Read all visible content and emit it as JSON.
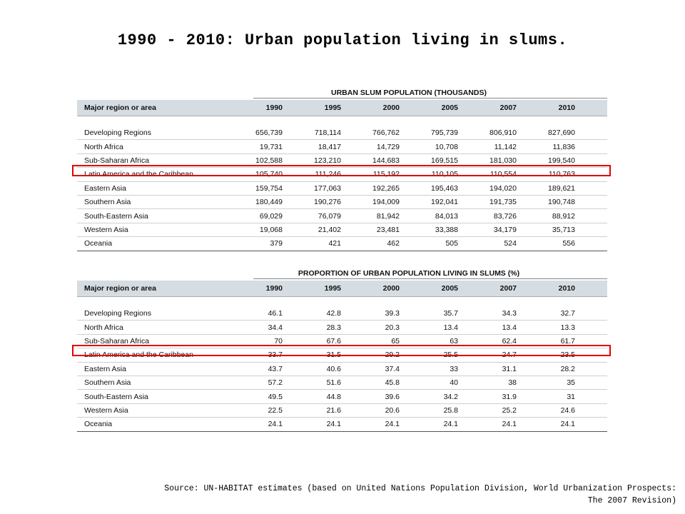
{
  "title": "1990 - 2010: Urban population living in slums.",
  "source_line1": "Source: UN-HABITAT estimates (based on United Nations Population Division, World Urbanization Prospects:",
  "source_line2": "The 2007 Revision)",
  "highlight_color": "#e00000",
  "header_fill": "#d6dde2",
  "tables": [
    {
      "caption": "URBAN SLUM POPULATION (THOUSANDS)",
      "header": [
        "Major region or area",
        "1990",
        "1995",
        "2000",
        "2005",
        "2007",
        "2010"
      ],
      "rows": [
        [
          "Developing Regions",
          "656,739",
          "718,114",
          "766,762",
          "795,739",
          "806,910",
          "827,690"
        ],
        [
          "North Africa",
          "19,731",
          "18,417",
          "14,729",
          "10,708",
          "11,142",
          "11,836"
        ],
        [
          "Sub-Saharan Africa",
          "102,588",
          "123,210",
          "144,683",
          "169,515",
          "181,030",
          "199,540"
        ],
        [
          "Latin America and the Caribbean",
          "105,740",
          "111,246",
          "115,192",
          "110,105",
          "110,554",
          "110,763"
        ],
        [
          "Eastern Asia",
          "159,754",
          "177,063",
          "192,265",
          "195,463",
          "194,020",
          "189,621"
        ],
        [
          "Southern Asia",
          "180,449",
          "190,276",
          "194,009",
          "192,041",
          "191,735",
          "190,748"
        ],
        [
          "South-Eastern Asia",
          "69,029",
          "76,079",
          "81,942",
          "84,013",
          "83,726",
          "88,912"
        ],
        [
          "Western Asia",
          "19,068",
          "21,402",
          "23,481",
          "33,388",
          "34,179",
          "35,713"
        ],
        [
          "Oceania",
          "379",
          "421",
          "462",
          "505",
          "524",
          "556"
        ]
      ]
    },
    {
      "caption": "PROPORTION OF URBAN POPULATION LIVING IN SLUMS (%)",
      "header": [
        "Major region or area",
        "1990",
        "1995",
        "2000",
        "2005",
        "2007",
        "2010"
      ],
      "rows": [
        [
          "Developing Regions",
          "46.1",
          "42.8",
          "39.3",
          "35.7",
          "34.3",
          "32.7"
        ],
        [
          "North Africa",
          "34.4",
          "28.3",
          "20.3",
          "13.4",
          "13.4",
          "13.3"
        ],
        [
          "Sub-Saharan Africa",
          "70",
          "67.6",
          "65",
          "63",
          "62.4",
          "61.7"
        ],
        [
          "Latin America and the Caribbean",
          "33.7",
          "31.5",
          "29.2",
          "25.5",
          "24.7",
          "23.5"
        ],
        [
          "Eastern Asia",
          "43.7",
          "40.6",
          "37.4",
          "33",
          "31.1",
          "28.2"
        ],
        [
          "Southern Asia",
          "57.2",
          "51.6",
          "45.8",
          "40",
          "38",
          "35"
        ],
        [
          "South-Eastern Asia",
          "49.5",
          "44.8",
          "39.6",
          "34.2",
          "31.9",
          "31"
        ],
        [
          "Western Asia",
          "22.5",
          "21.6",
          "20.6",
          "25.8",
          "25.2",
          "24.6"
        ],
        [
          "Oceania",
          "24.1",
          "24.1",
          "24.1",
          "24.1",
          "24.1",
          "24.1"
        ]
      ]
    }
  ]
}
